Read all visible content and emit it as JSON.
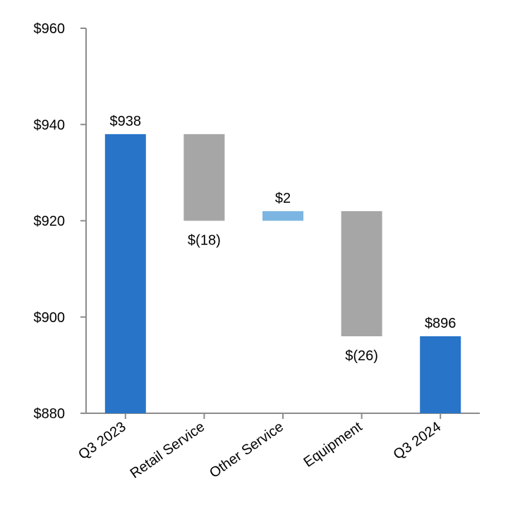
{
  "chart_data": {
    "type": "waterfall",
    "title": "",
    "xlabel": "",
    "ylabel": "",
    "ylim": [
      880,
      960
    ],
    "yticks": [
      "$960",
      "$940",
      "$920",
      "$900",
      "$880"
    ],
    "ytick_values": [
      960,
      940,
      920,
      900,
      880
    ],
    "grid": false,
    "legend": "none",
    "categories": [
      "Q3 2023",
      "Retail Service",
      "Other Service",
      "Equipment",
      "Q3 2024"
    ],
    "bars": [
      {
        "category": "Q3 2023",
        "kind": "total",
        "start": 880,
        "end": 938,
        "label": "$938",
        "label_position": "above"
      },
      {
        "category": "Retail Service",
        "kind": "decrease",
        "start": 938,
        "end": 920,
        "label": "$(18)",
        "label_position": "below"
      },
      {
        "category": "Other Service",
        "kind": "increase",
        "start": 920,
        "end": 922,
        "label": "$2",
        "label_position": "above"
      },
      {
        "category": "Equipment",
        "kind": "decrease",
        "start": 922,
        "end": 896,
        "label": "$(26)",
        "label_position": "below"
      },
      {
        "category": "Q3 2024",
        "kind": "total",
        "start": 880,
        "end": 896,
        "label": "$896",
        "label_position": "above"
      }
    ],
    "colors": {
      "total": "#2874c8",
      "decrease": "#a6a6a6",
      "increase": "#7cb5e2",
      "axis": "#8c8c8c"
    }
  }
}
